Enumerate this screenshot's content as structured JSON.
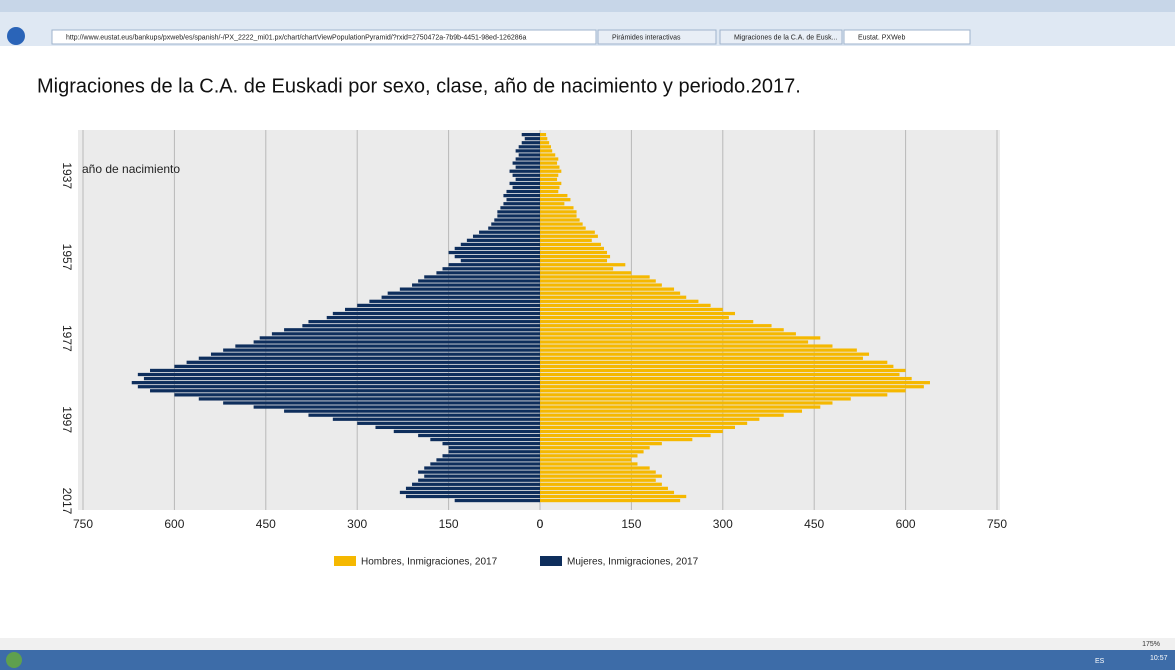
{
  "browser": {
    "url": "http://www.eustat.eus/bankups/pxweb/es/spanish/-/PX_2222_mi01.px/chart/chartViewPopulationPyramid/?rxid=2750472a-7b9b-4451-98ed-126286a",
    "tabs": [
      "Pirámides interactivas",
      "Migraciones de la C.A. de Eusk...",
      "Eustat. PXWeb"
    ],
    "zoom": "175%"
  },
  "taskbar": {
    "language": "ES",
    "time": "10:57"
  },
  "chart_data": {
    "type": "pyramid",
    "title": "Migraciones de la C.A. de Euskadi por sexo, clase, año de nacimiento y periodo.2017.",
    "annotation": "año de nacimiento",
    "categories": [
      null,
      null,
      null,
      null,
      null,
      null,
      null,
      null,
      null,
      null,
      "1937",
      null,
      null,
      null,
      null,
      null,
      null,
      null,
      null,
      null,
      null,
      null,
      null,
      null,
      null,
      null,
      null,
      null,
      null,
      null,
      "1957",
      null,
      null,
      null,
      null,
      null,
      null,
      null,
      null,
      null,
      null,
      null,
      null,
      null,
      null,
      null,
      null,
      null,
      null,
      null,
      "1977",
      null,
      null,
      null,
      null,
      null,
      null,
      null,
      null,
      null,
      null,
      null,
      null,
      null,
      null,
      null,
      null,
      null,
      null,
      null,
      "1997",
      null,
      null,
      null,
      null,
      null,
      null,
      null,
      null,
      null,
      null,
      null,
      null,
      null,
      null,
      null,
      null,
      null,
      null,
      null,
      "2017"
    ],
    "series": [
      {
        "name": "Hombres, Inmigraciones, 2017",
        "color": "#f5b800",
        "values": [
          10,
          12,
          15,
          18,
          20,
          25,
          30,
          28,
          32,
          35,
          30,
          28,
          35,
          32,
          30,
          45,
          50,
          40,
          55,
          60,
          60,
          65,
          70,
          75,
          90,
          95,
          85,
          100,
          105,
          110,
          115,
          110,
          140,
          120,
          150,
          180,
          190,
          200,
          220,
          230,
          240,
          260,
          280,
          300,
          320,
          310,
          350,
          380,
          400,
          420,
          460,
          440,
          480,
          520,
          540,
          530,
          570,
          580,
          600,
          590,
          610,
          640,
          630,
          600,
          570,
          510,
          480,
          460,
          430,
          400,
          360,
          340,
          320,
          300,
          280,
          250,
          200,
          180,
          170,
          160,
          150,
          160,
          180,
          190,
          200,
          190,
          200,
          210,
          220,
          240,
          230
        ]
      },
      {
        "name": "Mujeres, Inmigraciones, 2017",
        "color": "#0e2e5c",
        "values": [
          30,
          25,
          30,
          35,
          40,
          35,
          40,
          45,
          40,
          50,
          45,
          40,
          50,
          45,
          55,
          60,
          55,
          60,
          65,
          70,
          70,
          75,
          80,
          85,
          100,
          110,
          120,
          130,
          140,
          150,
          140,
          130,
          150,
          160,
          170,
          190,
          200,
          210,
          230,
          250,
          260,
          280,
          300,
          320,
          340,
          350,
          380,
          390,
          420,
          440,
          460,
          470,
          500,
          520,
          540,
          560,
          580,
          600,
          640,
          660,
          650,
          670,
          660,
          640,
          600,
          560,
          520,
          470,
          420,
          380,
          340,
          300,
          270,
          240,
          200,
          180,
          160,
          150,
          150,
          160,
          170,
          180,
          190,
          200,
          190,
          200,
          210,
          220,
          230,
          220,
          140
        ]
      }
    ],
    "xlim": [
      0,
      750
    ],
    "xticks": [
      0,
      150,
      300,
      450,
      600,
      750
    ],
    "grid": true
  }
}
